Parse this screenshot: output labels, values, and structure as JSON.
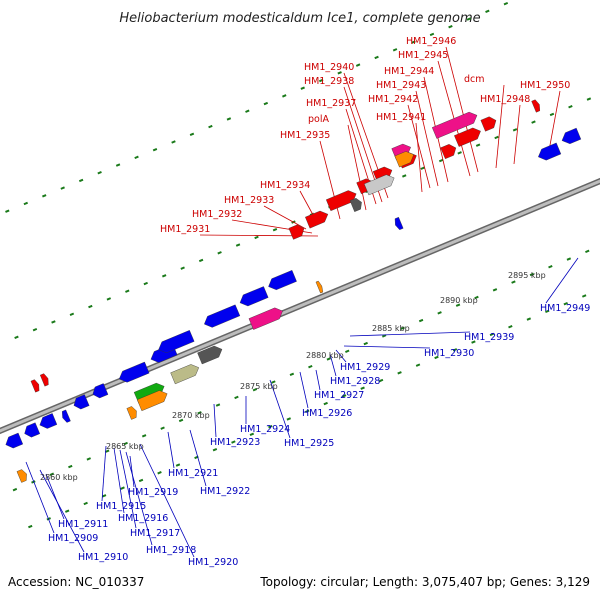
{
  "title": "Heliobacterium modesticaldum Ice1, complete genome",
  "footer": {
    "accession": "Accession: NC_010337",
    "summary": "Topology: circular; Length: 3,075,407 bp; Genes: 3,129"
  },
  "colors": {
    "forward_label": "#cc0000",
    "reverse_label": "#0000bb",
    "backbone": "#999999",
    "tick_marks": "#1a7a1a"
  },
  "scale_ticks": [
    {
      "label": "2860 kbp"
    },
    {
      "label": "2865 kbp"
    },
    {
      "label": "2870 kbp"
    },
    {
      "label": "2875 kbp"
    },
    {
      "label": "2880 kbp"
    },
    {
      "label": "2885 kbp"
    },
    {
      "label": "2890 kbp"
    },
    {
      "label": "2895 kbp"
    }
  ],
  "forward_labels": [
    "HM1_2931",
    "HM1_2932",
    "HM1_2933",
    "HM1_2934",
    "HM1_2935",
    "polA",
    "HM1_2937",
    "HM1_2938",
    "HM1_2940",
    "HM1_2941",
    "HM1_2942",
    "HM1_2943",
    "HM1_2944",
    "HM1_2945",
    "HM1_2946",
    "dcm",
    "HM1_2948",
    "HM1_2950"
  ],
  "reverse_labels": [
    "HM1_2909",
    "HM1_2910",
    "HM1_2911",
    "HM1_2915",
    "HM1_2916",
    "HM1_2917",
    "HM1_2918",
    "HM1_2919",
    "HM1_2920",
    "HM1_2921",
    "HM1_2922",
    "HM1_2923",
    "HM1_2924",
    "HM1_2925",
    "HM1_2926",
    "HM1_2927",
    "HM1_2928",
    "HM1_2929",
    "HM1_2930",
    "HM1_2939",
    "HM1_2949"
  ]
}
